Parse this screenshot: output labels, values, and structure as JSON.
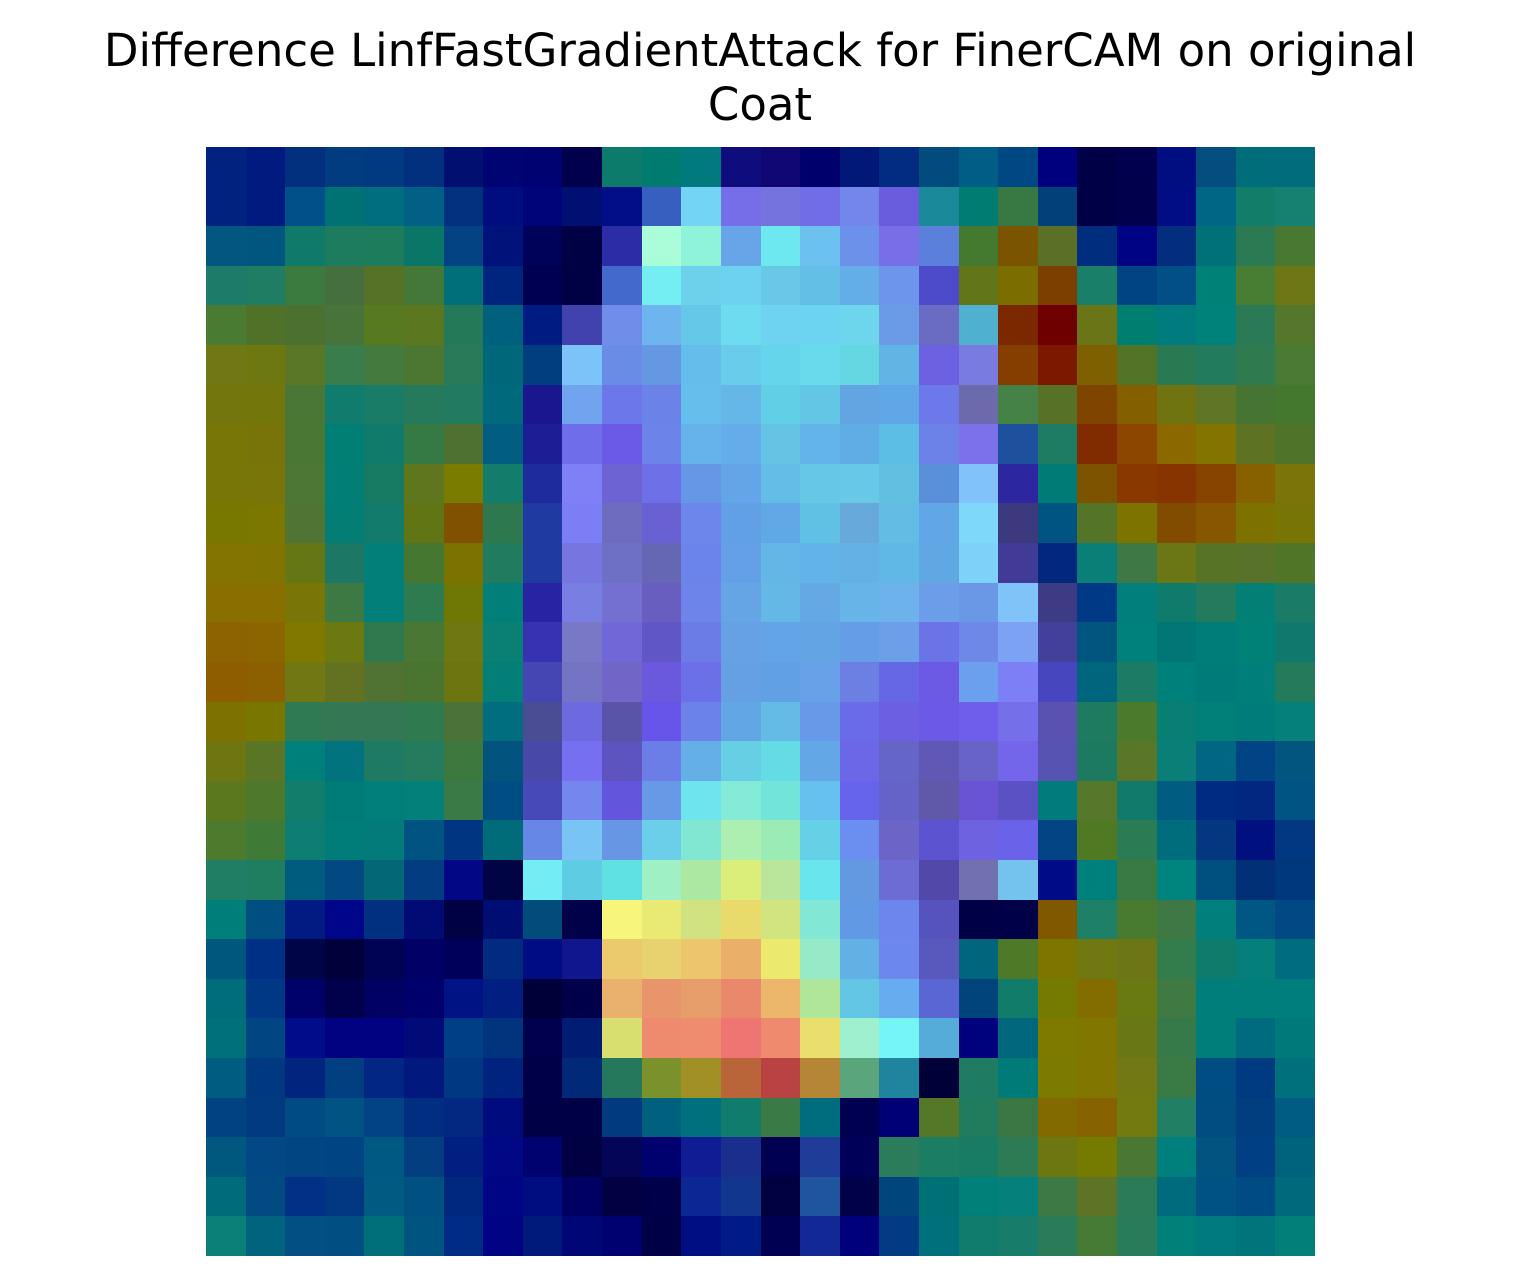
{
  "chart_data": {
    "type": "heatmap",
    "title_lines": [
      "Difference LinfFastGradientAttack for FinerCAM on original",
      "Coat"
    ],
    "xlabel": "",
    "ylabel": "",
    "axes_visible": false,
    "grid": false,
    "legend": "none",
    "rows": 28,
    "cols": 28,
    "cells": [
      [
        "#01237f",
        "#011a7f",
        "#02307f",
        "#013b80",
        "#023a82",
        "#032f7f",
        "#010f71",
        "#000472",
        "#000272",
        "#00004c",
        "#0d7b6b",
        "#007b70",
        "#007a7c",
        "#0f0c7e",
        "#100674",
        "#00006c",
        "#021878",
        "#022c81",
        "#014b7f",
        "#005e86",
        "#004884",
        "#00007e",
        "#000046",
        "#00004e",
        "#000e81",
        "#034d7f",
        "#006d7b",
        "#006c7c"
      ],
      [
        "#01237f",
        "#011a7f",
        "#02508a",
        "#007274",
        "#006e7f",
        "#025f86",
        "#03307f",
        "#000d7e",
        "#000479",
        "#000f71",
        "#020e88",
        "#365fbf",
        "#73d4f6",
        "#766ee9",
        "#7574df",
        "#716ce7",
        "#7386ec",
        "#6a5ddd",
        "#1a8a9b",
        "#007c73",
        "#387843",
        "#024079",
        "#000046",
        "#00004c",
        "#000d84",
        "#006686",
        "#127d68",
        "#168071"
      ],
      [
        "#025680",
        "#00567f",
        "#0f796a",
        "#1d7b5e",
        "#1d7c5c",
        "#097667",
        "#044383",
        "#00137b",
        "#000259",
        "#000044",
        "#2b2ca6",
        "#a9fed9",
        "#8ff3da",
        "#68a5e8",
        "#6de8f0",
        "#6bc1f0",
        "#6c91eb",
        "#786fe7",
        "#5a80dc",
        "#437a2f",
        "#7b5400",
        "#5a7027",
        "#012d7f",
        "#000484",
        "#032e80",
        "#007177",
        "#2c7a53",
        "#487832"
      ],
      [
        "#1d7b6a",
        "#1f7d64",
        "#3b7b3f",
        "#466f3e",
        "#557226",
        "#447838",
        "#006f7a",
        "#00257e",
        "#000051",
        "#000044",
        "#4369cd",
        "#74eef3",
        "#6dd1ec",
        "#6dd2ef",
        "#68c8e6",
        "#63bfe6",
        "#63ade8",
        "#6d95ea",
        "#4d4bca",
        "#627518",
        "#7c6d00",
        "#7d3f00",
        "#197f69",
        "#004484",
        "#014f86",
        "#008177",
        "#487d34",
        "#6e7715"
      ],
      [
        "#4a7b33",
        "#4f7228",
        "#4b7130",
        "#487339",
        "#577a20",
        "#5b7720",
        "#247a58",
        "#00617f",
        "#001c82",
        "#4142ad",
        "#6f8de9",
        "#6eb4ef",
        "#66c8e8",
        "#6ddcf0",
        "#6dd3f0",
        "#6cd3f0",
        "#6dd6ed",
        "#6b9be6",
        "#6a6cc3",
        "#4fb0d0",
        "#7b2800",
        "#6f0000",
        "#6a7517",
        "#007f70",
        "#007b7e",
        "#00817a",
        "#297a55",
        "#55772b"
      ],
      [
        "#6f7815",
        "#6d7810",
        "#5a7727",
        "#397d4d",
        "#437a3e",
        "#4b7733",
        "#287a58",
        "#00677a",
        "#003e80",
        "#7bc3f8",
        "#698ce6",
        "#6598e2",
        "#65bdeb",
        "#68ccea",
        "#65d5ec",
        "#67dbec",
        "#65d7e2",
        "#62b4e4",
        "#6c62e1",
        "#7a7be0",
        "#843f00",
        "#7d1800",
        "#7e6000",
        "#527426",
        "#297a52",
        "#217b5c",
        "#2f7a4f",
        "#4a7a33"
      ],
      [
        "#72760d",
        "#73760a",
        "#4b7736",
        "#0f7c6e",
        "#187c66",
        "#247a5b",
        "#227b60",
        "#00697b",
        "#19168f",
        "#71a4ef",
        "#6c77ea",
        "#6b83e8",
        "#65beeb",
        "#64b7e6",
        "#61cfe5",
        "#64c6e5",
        "#63a4e2",
        "#5fa7e6",
        "#6d78e9",
        "#6a6aad",
        "#458248",
        "#577126",
        "#7f4400",
        "#835f00",
        "#6f7310",
        "#5e7625",
        "#467533",
        "#44782f"
      ],
      [
        "#777607",
        "#797409",
        "#4a7733",
        "#027f75",
        "#107b6b",
        "#357a45",
        "#4e7131",
        "#025d82",
        "#1b1e94",
        "#6f6de9",
        "#6a5ae5",
        "#6c84ea",
        "#66b3ea",
        "#64acea",
        "#65c4e4",
        "#63b4e8",
        "#60ace4",
        "#5cbde5",
        "#6d82e8",
        "#7c71ea",
        "#1d509d",
        "#1e7c63",
        "#802c00",
        "#8c4600",
        "#8c6800",
        "#837400",
        "#5e7223",
        "#4f7429"
      ],
      [
        "#787607",
        "#797508",
        "#4c7734",
        "#017e76",
        "#177b63",
        "#5e771e",
        "#7a7c00",
        "#137c6a",
        "#1e2c9b",
        "#7f7ff6",
        "#6d63d2",
        "#6d70e6",
        "#6597e6",
        "#63a5e7",
        "#63bde6",
        "#67c7e6",
        "#67c8e8",
        "#61bfe1",
        "#5990d9",
        "#80c2f9",
        "#2c26a0",
        "#007b76",
        "#7d5300",
        "#893800",
        "#883400",
        "#864400",
        "#876000",
        "#7b7509"
      ],
      [
        "#787800",
        "#7b7700",
        "#4f7433",
        "#027e75",
        "#127b6b",
        "#627514",
        "#805200",
        "#2e7850",
        "#1f3aa1",
        "#7b7ef4",
        "#6d6cbf",
        "#6960d3",
        "#6c86ec",
        "#62a0e6",
        "#61a8e7",
        "#61c1e5",
        "#68a9dc",
        "#62bce4",
        "#61a7e7",
        "#7ed9f8",
        "#3c3a7e",
        "#005481",
        "#547427",
        "#7d7400",
        "#814c00",
        "#875700",
        "#7d7200",
        "#787507"
      ],
      [
        "#837300",
        "#817400",
        "#647714",
        "#1c7864",
        "#037f7a",
        "#457730",
        "#7b7200",
        "#217b5f",
        "#1f3aa1",
        "#7776e1",
        "#6e70c5",
        "#6566b4",
        "#6b84ec",
        "#63a0e6",
        "#63b6e6",
        "#62b3e7",
        "#63b1e5",
        "#60b8e6",
        "#60a8e3",
        "#7dd2f9",
        "#3f3b97",
        "#02287e",
        "#0a7f78",
        "#3d7845",
        "#6a7714",
        "#577326",
        "#587229",
        "#517527"
      ],
      [
        "#886f00",
        "#886f00",
        "#7a7507",
        "#3d7a43",
        "#017f78",
        "#2d7b4f",
        "#707805",
        "#037f7a",
        "#2823a2",
        "#797fe2",
        "#7470d1",
        "#675ebf",
        "#6d85ea",
        "#65a5e5",
        "#63b8e5",
        "#64a9e4",
        "#67b4e8",
        "#6db2ea",
        "#6b9de9",
        "#6a98e7",
        "#80c3f8",
        "#3d3b84",
        "#003a86",
        "#017f7c",
        "#0e7b6b",
        "#247a5d",
        "#047f75",
        "#1a7b67",
        "#4c7831"
      ],
      [
        "#8d6200",
        "#8d6500",
        "#807900",
        "#6c7810",
        "#30794f",
        "#4b7734",
        "#6d7910",
        "#0a7f74",
        "#3632b2",
        "#7978c7",
        "#7068d6",
        "#6156c6",
        "#6b7ce6",
        "#65a1e4",
        "#63a3e8",
        "#63a4e5",
        "#659de7",
        "#6ba0e9",
        "#6b74e6",
        "#6e88e8",
        "#7ba2f5",
        "#42409a",
        "#00567f",
        "#00817c",
        "#007776",
        "#007d79",
        "#008177",
        "#11786d",
        "#34784e"
      ],
      [
        "#8d5d00",
        "#8c6000",
        "#717712",
        "#637221",
        "#507334",
        "#4a7530",
        "#6b7610",
        "#037f78",
        "#4546b4",
        "#7574c4",
        "#7265c8",
        "#6a58dd",
        "#6b70e9",
        "#66a0e4",
        "#62a0e6",
        "#68a1e8",
        "#6c7fe2",
        "#6667e5",
        "#6c5ae4",
        "#6ba0ee",
        "#7d7ff6",
        "#4846bf",
        "#00667e",
        "#1b7b65",
        "#00807b",
        "#007b79",
        "#007f7a",
        "#247b5b",
        "#35784d"
      ],
      [
        "#7d7100",
        "#787700",
        "#2f7a53",
        "#347754",
        "#347754",
        "#2f7a4f",
        "#4c7337",
        "#006e7e",
        "#4a4c94",
        "#6d69de",
        "#5a54a8",
        "#6655e8",
        "#6a82ea",
        "#63a6e5",
        "#63bbe6",
        "#6699e8",
        "#6a6be8",
        "#6b5fe2",
        "#6c5ae6",
        "#6f5eeb",
        "#7570ea",
        "#5952b0",
        "#1e7b5f",
        "#4b7a2a",
        "#077f74",
        "#008079",
        "#007d7a",
        "#05807a",
        "#247b5f"
      ],
      [
        "#6e7611",
        "#5b7527",
        "#00807a",
        "#00737f",
        "#1e7a63",
        "#247b5d",
        "#3d783f",
        "#02547f",
        "#4848a9",
        "#766ff1",
        "#5e54bf",
        "#6b7de6",
        "#64b0e6",
        "#66cfe4",
        "#65dbe5",
        "#63a7e6",
        "#6b67e6",
        "#6564c7",
        "#6058b5",
        "#6763c7",
        "#7466eb",
        "#5653b2",
        "#1b7a5f",
        "#5a7628",
        "#0a7f77",
        "#006682",
        "#014485",
        "#01557f",
        "#027f79"
      ],
      [
        "#5b781c",
        "#4e782b",
        "#127d6b",
        "#007c78",
        "#017f7b",
        "#03807a",
        "#397a47",
        "#004d84",
        "#4849b9",
        "#7487ef",
        "#6156dc",
        "#6799e6",
        "#6ee4ef",
        "#85ebd9",
        "#72e4da",
        "#67c1ef",
        "#6664ea",
        "#6563c7",
        "#6058a8",
        "#6954d6",
        "#5a51c4",
        "#017b7b",
        "#56782a",
        "#117a6a",
        "#005c80",
        "#002b83",
        "#022780",
        "#005483"
      ],
      [
        "#4d7a2c",
        "#3f7b37",
        "#0f7e72",
        "#007d79",
        "#037b7a",
        "#005482",
        "#003581",
        "#006b79",
        "#6787e7",
        "#78c4f5",
        "#6797e4",
        "#6bcfea",
        "#81e6d2",
        "#acefb1",
        "#9bebb4",
        "#65d0e6",
        "#6b8ff0",
        "#6a65c7",
        "#5b53cf",
        "#6d62df",
        "#6a62e9",
        "#024484",
        "#507924",
        "#2b7c55",
        "#006d7d",
        "#03377f",
        "#00117f",
        "#023881"
      ],
      [
        "#1f7e63",
        "#1f7d60",
        "#005c7e",
        "#024982",
        "#046776",
        "#043c82",
        "#000885",
        "#000344",
        "#73edf3",
        "#5ecce3",
        "#5fe1e3",
        "#9ff1c5",
        "#ade8a2",
        "#dbee7a",
        "#b9e69a",
        "#68e6ec",
        "#6299e0",
        "#6d6cd4",
        "#5148aa",
        "#7071ae",
        "#74c2ee",
        "#000b88",
        "#00807c",
        "#397a44",
        "#00847e",
        "#00507f",
        "#023077",
        "#00387e"
      ],
      [
        "#007e7a",
        "#004f80",
        "#011b82",
        "#00068a",
        "#00307f",
        "#000b73",
        "#000044",
        "#000e73",
        "#024c7b",
        "#000148",
        "#f8f57c",
        "#e8ea74",
        "#d1e381",
        "#e9db6b",
        "#d2e480",
        "#83e7d6",
        "#6199e4",
        "#6d86ed",
        "#5653be",
        "#000046",
        "#000048",
        "#805800",
        "#1e8067",
        "#487a2f",
        "#3e7844",
        "#007f7c",
        "#005784",
        "#014985"
      ],
      [
        "#00577e",
        "#003085",
        "#000548",
        "#00003a",
        "#000253",
        "#000066",
        "#00005a",
        "#022b80",
        "#000c83",
        "#10168d",
        "#ebca6e",
        "#e8d26f",
        "#edc56d",
        "#eab06a",
        "#ebea6e",
        "#97eac8",
        "#62b0e4",
        "#6c87ee",
        "#5858bd",
        "#00667e",
        "#4e7a28",
        "#7c7500",
        "#6f7811",
        "#6c7616",
        "#337c4c",
        "#0f7c6b",
        "#047f7b",
        "#006c80"
      ],
      [
        "#006d7c",
        "#013885",
        "#000269",
        "#00004b",
        "#000162",
        "#00006d",
        "#001384",
        "#001f80",
        "#000039",
        "#00004a",
        "#eab06d",
        "#e8956b",
        "#e89e6a",
        "#e9886a",
        "#ecb76a",
        "#b0e699",
        "#64c6e5",
        "#66acee",
        "#5b66d5",
        "#01447c",
        "#127c6b",
        "#757a00",
        "#836d00",
        "#687a11",
        "#3e7a42",
        "#007e7b",
        "#007e7c",
        "#007e7d"
      ],
      [
        "#00707b",
        "#014682",
        "#000c8a",
        "#000281",
        "#000281",
        "#000b77",
        "#003f86",
        "#01347d",
        "#00004e",
        "#001c73",
        "#d8df6f",
        "#ee8a6d",
        "#ef8c6e",
        "#ef7572",
        "#ef8a6f",
        "#eade6d",
        "#9ef0ce",
        "#76f5f6",
        "#55acd8",
        "#00017d",
        "#00677d",
        "#7e7a00",
        "#807600",
        "#697714",
        "#367a4a",
        "#007e7a",
        "#006b7f",
        "#00797b"
      ],
      [
        "#005d82",
        "#013981",
        "#01257f",
        "#023f80",
        "#012683",
        "#01187e",
        "#003881",
        "#00237f",
        "#000048",
        "#002a78",
        "#25785c",
        "#7a922c",
        "#a09025",
        "#b96439",
        "#b94342",
        "#b58635",
        "#5aa57c",
        "#1f859f",
        "#000038",
        "#1f7c63",
        "#007b78",
        "#7c7b00",
        "#807600",
        "#717814",
        "#3a7a45",
        "#004d83",
        "#003a80",
        "#00717c"
      ],
      [
        "#014382",
        "#013a81",
        "#004b82",
        "#015384",
        "#014384",
        "#012e81",
        "#022882",
        "#000b7e",
        "#000047",
        "#000047",
        "#023a80",
        "#00617f",
        "#00707f",
        "#0f7c6c",
        "#3a7a47",
        "#006d7f",
        "#000050",
        "#000074",
        "#547728",
        "#217c5e",
        "#3a7745",
        "#836a00",
        "#876200",
        "#727a10",
        "#218064",
        "#014d82",
        "#013e80",
        "#005c82"
      ],
      [
        "#01587f",
        "#014884",
        "#014682",
        "#004484",
        "#005983",
        "#023e80",
        "#011e81",
        "#000885",
        "#00036f",
        "#000042",
        "#040556",
        "#00006e",
        "#101c93",
        "#1a2e8d",
        "#000050",
        "#1f3c98",
        "#000058",
        "#2b7c5b",
        "#1b7d62",
        "#187c64",
        "#2c7b55",
        "#6c7711",
        "#757b00",
        "#4a7834",
        "#00807c",
        "#02537f",
        "#003f84",
        "#00637d"
      ],
      [
        "#006c7b",
        "#014a82",
        "#023086",
        "#023781",
        "#005a82",
        "#005082",
        "#01287f",
        "#000585",
        "#000d80",
        "#000063",
        "#000043",
        "#00004a",
        "#0b2794",
        "#11368d",
        "#000040",
        "#1f559f",
        "#000148",
        "#00457c",
        "#007077",
        "#008079",
        "#06807a",
        "#3c7944",
        "#5d7427",
        "#2c7b57",
        "#006b7d",
        "#015284",
        "#004b84",
        "#006a7c"
      ],
      [
        "#0b8078",
        "#01637e",
        "#014f83",
        "#014f82",
        "#006f79",
        "#005580",
        "#012c85",
        "#000484",
        "#001a7b",
        "#000676",
        "#000170",
        "#000046",
        "#000e83",
        "#011b86",
        "#000053",
        "#122995",
        "#00007c",
        "#023a83",
        "#00707c",
        "#0f7c6d",
        "#177c69",
        "#2a7b58",
        "#467b35",
        "#287c5a",
        "#008079",
        "#007a7d",
        "#00747b",
        "#037f79"
      ]
    ]
  }
}
